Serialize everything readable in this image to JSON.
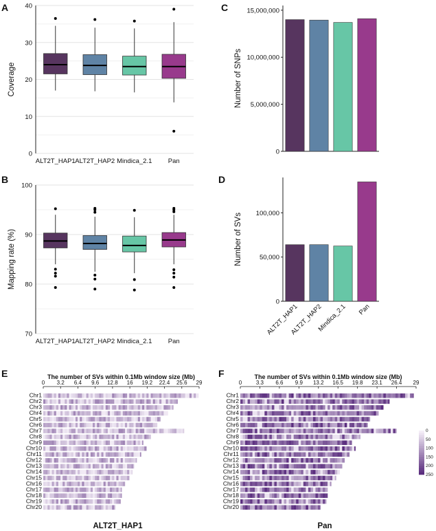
{
  "figure": {
    "panels": {
      "A": "A",
      "B": "B",
      "C": "C",
      "D": "D",
      "E": "E",
      "F": "F"
    }
  },
  "colors": {
    "ALT2T_HAP1": "#57355f",
    "ALT2T_HAP2": "#5f83a5",
    "Mindica_2.1": "#67c6a6",
    "Pan": "#983a8c",
    "heat_low": "#f4eef7",
    "heat_high": "#5a2d7e"
  },
  "chart_data": [
    {
      "id": "A",
      "type": "box",
      "title": "",
      "xlabel": "",
      "ylabel": "Coverage",
      "ylim": [
        0,
        40
      ],
      "yticks": [
        0,
        10,
        20,
        30,
        40
      ],
      "categories": [
        "ALT2T_HAP1",
        "ALT2T_HAP2",
        "Mindica_2.1",
        "Pan"
      ],
      "boxes": [
        {
          "name": "ALT2T_HAP1",
          "whisker_low": 17,
          "q1": 21.5,
          "median": 24,
          "q3": 27,
          "whisker_high": 34.5,
          "outliers": [
            36.5
          ]
        },
        {
          "name": "ALT2T_HAP2",
          "whisker_low": 16.8,
          "q1": 21.3,
          "median": 23.8,
          "q3": 26.7,
          "whisker_high": 34,
          "outliers": [
            36.2
          ]
        },
        {
          "name": "Mindica_2.1",
          "whisker_low": 16.5,
          "q1": 21.2,
          "median": 23.5,
          "q3": 26.3,
          "whisker_high": 33.8,
          "outliers": [
            35.8
          ]
        },
        {
          "name": "Pan",
          "whisker_low": 13.8,
          "q1": 20.3,
          "median": 23.5,
          "q3": 26.8,
          "whisker_high": 35.5,
          "outliers": [
            39,
            6
          ]
        }
      ]
    },
    {
      "id": "B",
      "type": "box",
      "title": "",
      "xlabel": "",
      "ylabel": "Mapping rate (%)",
      "ylim": [
        70,
        100
      ],
      "yticks": [
        70,
        80,
        90,
        100
      ],
      "categories": [
        "ALT2T_HAP1",
        "ALT2T_HAP2",
        "Mindica_2.1",
        "Pan"
      ],
      "boxes": [
        {
          "name": "ALT2T_HAP1",
          "whisker_low": 84,
          "q1": 87.3,
          "median": 88.7,
          "q3": 90.3,
          "whisker_high": 94,
          "outliers": [
            95.2,
            83,
            82.2,
            81.6,
            79.3
          ]
        },
        {
          "name": "ALT2T_HAP2",
          "whisker_low": 82.5,
          "q1": 87,
          "median": 88.2,
          "q3": 89.8,
          "whisker_high": 93.6,
          "outliers": [
            95.3,
            95,
            94.5,
            81.8,
            81,
            79
          ]
        },
        {
          "name": "Mindica_2.1",
          "whisker_low": 82.2,
          "q1": 86.5,
          "median": 87.8,
          "q3": 89.7,
          "whisker_high": 93.5,
          "outliers": [
            94.9,
            80.9,
            78.8
          ]
        },
        {
          "name": "Pan",
          "whisker_low": 84,
          "q1": 87.5,
          "median": 88.9,
          "q3": 90.4,
          "whisker_high": 94,
          "outliers": [
            95.3,
            95,
            94.6,
            82.9,
            82.2,
            81.4,
            79.3
          ]
        }
      ]
    },
    {
      "id": "C",
      "type": "bar",
      "title": "",
      "xlabel": "",
      "ylabel": "Number of SNPs",
      "ylim": [
        0,
        15500000
      ],
      "yticks": [
        0,
        5000000,
        10000000,
        15000000
      ],
      "ytick_labels": [
        "0",
        "5,000,000",
        "10,000,000",
        "15,000,000"
      ],
      "categories": [
        "ALT2T_HAP1",
        "ALT2T_HAP2",
        "Mindica_2.1",
        "Pan"
      ],
      "values": [
        14000000,
        13950000,
        13700000,
        14100000
      ]
    },
    {
      "id": "D",
      "type": "bar",
      "title": "",
      "xlabel": "",
      "ylabel": "Number of SVs",
      "ylim": [
        0,
        140000
      ],
      "yticks": [
        0,
        50000,
        100000
      ],
      "ytick_labels": [
        "0",
        "50,000",
        "100,000"
      ],
      "categories": [
        "ALT2T_HAP1",
        "ALT2T_HAP2",
        "Mindica_2.1",
        "Pan"
      ],
      "values": [
        64000,
        64000,
        62500,
        135000
      ]
    },
    {
      "id": "E",
      "type": "heatmap",
      "title": "The number of SVs within 0.1Mb window size (Mb)",
      "caption": "ALT2T_HAP1",
      "xlim": [
        0,
        29
      ],
      "xtick_labels": [
        "0",
        "3.2",
        "6.4",
        "9.6",
        "12.8",
        "16",
        "19.2",
        "22.4",
        "25.6",
        "29"
      ],
      "chromosomes": [
        "Chr1",
        "Chr2",
        "Chr3",
        "Chr4",
        "Chr5",
        "Chr6",
        "Chr7",
        "Chr8",
        "Chr9",
        "Chr10",
        "Chr11",
        "Chr12",
        "Chr13",
        "Chr14",
        "Chr15",
        "Chr16",
        "Chr17",
        "Chr18",
        "Chr19",
        "Chr20"
      ],
      "lengths_mb": [
        28.8,
        25.0,
        24.2,
        23.2,
        21.8,
        21.2,
        26.2,
        20.0,
        18.6,
        19.2,
        18.2,
        17.4,
        17.0,
        16.6,
        16.0,
        15.2,
        14.6,
        14.6,
        14.4,
        13.4
      ],
      "intensity": "low"
    },
    {
      "id": "F",
      "type": "heatmap",
      "title": "The number of SVs within 0.1Mb window size (Mb)",
      "caption": "Pan",
      "xlim": [
        0,
        29
      ],
      "xtick_labels": [
        "0",
        "3.3",
        "6.6",
        "9.9",
        "13.2",
        "16.5",
        "19.8",
        "23.1",
        "26.4",
        "29"
      ],
      "chromosomes": [
        "Chr1",
        "Chr2",
        "Chr3",
        "Chr4",
        "Chr5",
        "Chr6",
        "Chr7",
        "Chr8",
        "Chr9",
        "Chr10",
        "Chr11",
        "Chr12",
        "Chr13",
        "Chr14",
        "Chr15",
        "Chr16",
        "Chr17",
        "Chr18",
        "Chr19",
        "Chr20"
      ],
      "lengths_mb": [
        28.6,
        24.6,
        23.6,
        22.8,
        21.4,
        21.0,
        25.8,
        19.8,
        18.4,
        19.0,
        18.0,
        17.2,
        16.8,
        16.4,
        15.8,
        15.0,
        14.4,
        14.4,
        14.2,
        13.2
      ],
      "intensity": "high",
      "legend": {
        "ticks": [
          0,
          50,
          100,
          150,
          200,
          250
        ],
        "labels": [
          "0",
          "50",
          "100",
          "150",
          "200",
          "250"
        ]
      }
    }
  ]
}
